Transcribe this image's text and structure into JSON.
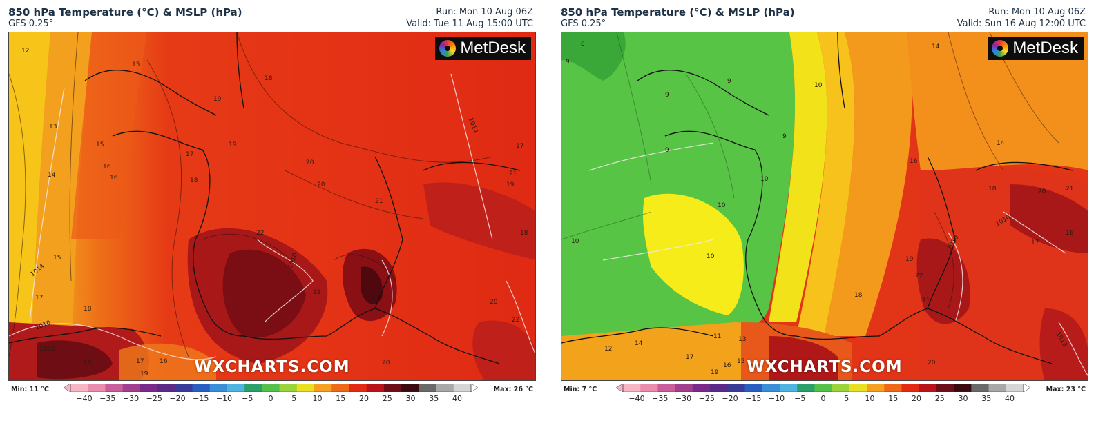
{
  "panels": [
    {
      "title": "850 hPa Temperature (°C) & MSLP (hPa)",
      "model": "GFS 0.25°",
      "run": "Run: Mon 10 Aug 06Z",
      "valid": "Valid: Tue 11 Aug 15:00 UTC",
      "brand": "MetDesk",
      "watermark": "WXCHARTS.COM",
      "legend_min": "Min: 11 °C",
      "legend_max": "Max: 26 °C",
      "labels": [
        "12",
        "15",
        "18",
        "19",
        "13",
        "15",
        "16",
        "17",
        "19",
        "20",
        "14",
        "16",
        "18",
        "20",
        "21",
        "22",
        "1010",
        "1014",
        "1014",
        "15",
        "17",
        "18",
        "19",
        "23",
        "1010",
        "1006",
        "20",
        "22",
        "17",
        "16",
        "18",
        "19",
        "20",
        "21",
        "17",
        "18",
        "19"
      ]
    },
    {
      "title": "850 hPa Temperature (°C) & MSLP (hPa)",
      "model": "GFS 0.25°",
      "run": "Run: Mon 10 Aug 06Z",
      "valid": "Valid: Sun 16 Aug 12:00 UTC",
      "brand": "MetDesk",
      "watermark": "WXCHARTS.COM",
      "legend_min": "Min: 7 °C",
      "legend_max": "Max: 23 °C",
      "labels": [
        "8",
        "9",
        "9",
        "9",
        "9",
        "10",
        "10",
        "10",
        "10",
        "10",
        "9",
        "11",
        "13",
        "12",
        "14",
        "17",
        "16",
        "19",
        "15",
        "14",
        "14",
        "16",
        "18",
        "20",
        "21",
        "22",
        "19",
        "17",
        "16",
        "18",
        "21",
        "20",
        "1010",
        "1010",
        "1013"
      ]
    }
  ],
  "legend": {
    "ticks": [
      "−40",
      "−35",
      "−30",
      "−25",
      "−20",
      "−15",
      "−10",
      "−5",
      "0",
      "5",
      "10",
      "15",
      "20",
      "25",
      "30",
      "35",
      "40"
    ],
    "colors": [
      "#f7b6c4",
      "#e98cae",
      "#c85f9b",
      "#a0408f",
      "#7a2a88",
      "#5a2a86",
      "#3a3a98",
      "#2a5fc1",
      "#3a8fd6",
      "#4fb4e0",
      "#2aa06a",
      "#55c04a",
      "#9ad43a",
      "#e8e020",
      "#f5a020",
      "#ee6a18",
      "#e52a14",
      "#b8141a",
      "#6e0e18",
      "#3a0a10",
      "#6a6a6a",
      "#a8a8a8",
      "#d6d6d6"
    ]
  }
}
